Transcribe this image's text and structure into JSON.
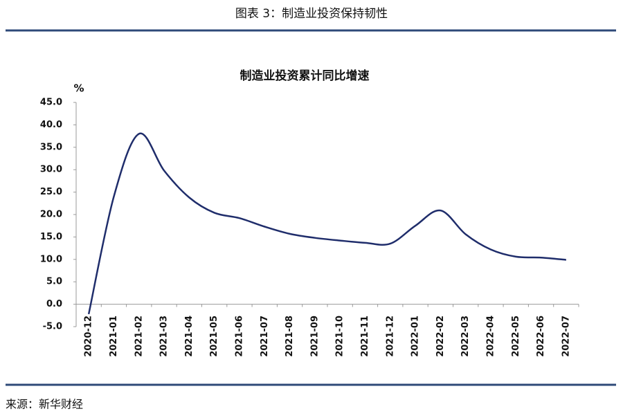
{
  "header": {
    "title": "图表 3：制造业投资保持韧性"
  },
  "chart_data": {
    "type": "line",
    "title": "制造业投资累计同比增速",
    "y_unit": "%",
    "categories": [
      "2020-12",
      "2021-01",
      "2021-02",
      "2021-03",
      "2021-04",
      "2021-05",
      "2021-06",
      "2021-07",
      "2021-08",
      "2021-09",
      "2021-10",
      "2021-11",
      "2021-12",
      "2022-01",
      "2022-02",
      "2022-03",
      "2022-04",
      "2022-05",
      "2022-06",
      "2022-07"
    ],
    "series": [
      {
        "name": "制造业投资累计同比",
        "color": "#1f2d6b",
        "values": [
          -2.2,
          24,
          38,
          29.8,
          23.8,
          20.4,
          19.2,
          17.3,
          15.7,
          14.8,
          14.2,
          13.7,
          13.5,
          17.5,
          20.9,
          15.6,
          12.2,
          10.6,
          10.4,
          9.9
        ]
      }
    ],
    "ylim": [
      -5,
      45
    ],
    "yticks": [
      {
        "value": -5,
        "label": "-5.0"
      },
      {
        "value": 0,
        "label": "0.0"
      },
      {
        "value": 5,
        "label": "5.0"
      },
      {
        "value": 10,
        "label": "10.0"
      },
      {
        "value": 15,
        "label": "15.0"
      },
      {
        "value": 20,
        "label": "20.0"
      },
      {
        "value": 25,
        "label": "25.0"
      },
      {
        "value": 30,
        "label": "30.0"
      },
      {
        "value": 35,
        "label": "35.0"
      },
      {
        "value": 40,
        "label": "40.0"
      },
      {
        "value": 45,
        "label": "45.0"
      }
    ],
    "grid": false
  },
  "footer": {
    "source": "来源：新华财经"
  }
}
